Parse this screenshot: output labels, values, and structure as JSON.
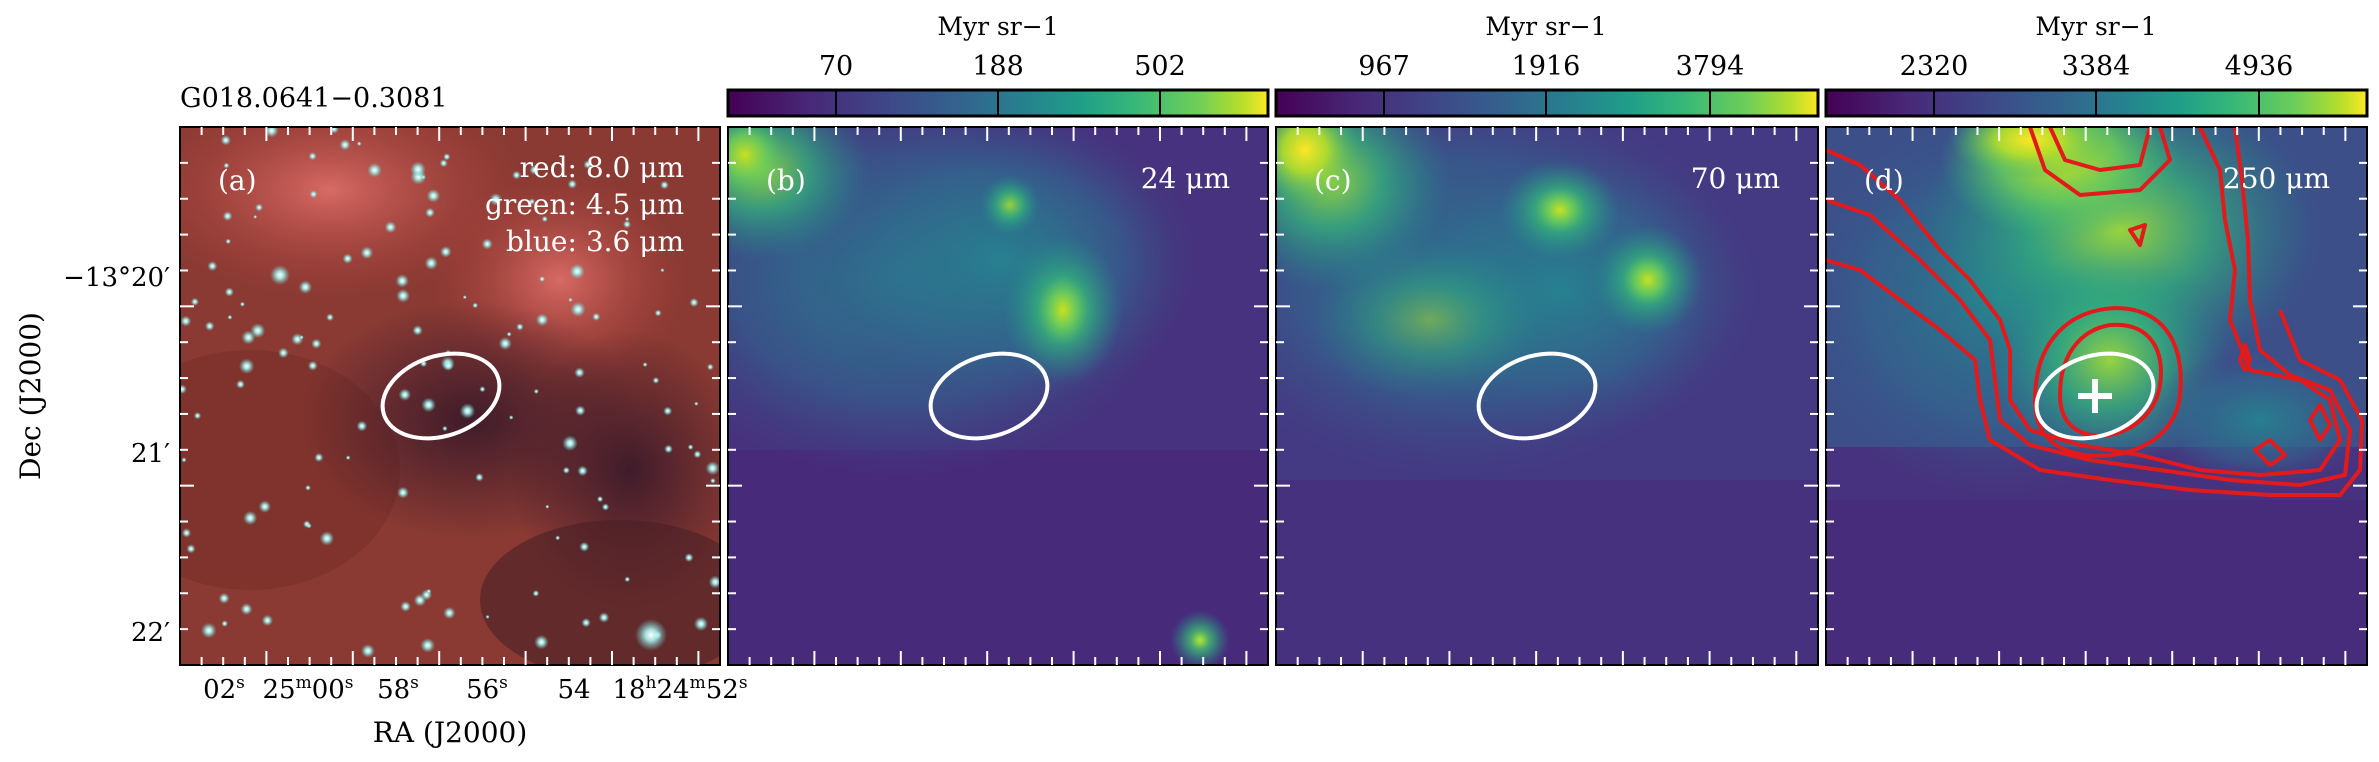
{
  "source_name": "G018.0641−0.3081",
  "x_axis_label": "RA (J2000)",
  "y_axis_label": "Dec (J2000)",
  "ra_ticks": [
    {
      "label": "02",
      "sup": "s"
    },
    {
      "label": "25",
      "sup": "m",
      "label2": "00",
      "sup2": "s"
    },
    {
      "label": "58",
      "sup": "s"
    },
    {
      "label": "56",
      "sup": "s"
    },
    {
      "label": "54",
      "sup": ""
    },
    {
      "label": "18",
      "sup": "h",
      "label2": "24",
      "sup2": "m",
      "label3": "52",
      "sup3": "s"
    }
  ],
  "dec_ticks": [
    "−13°20′",
    "21′",
    "22′"
  ],
  "panels": [
    {
      "id": "a",
      "letter": "(a)",
      "bands": [
        "red: 8.0 μm",
        "green: 4.5 μm",
        "blue: 3.6 μm"
      ]
    },
    {
      "id": "b",
      "letter": "(b)",
      "wavelength": "24 μm",
      "colorbar": {
        "unit": "Myr sr−1",
        "ticks": [
          "70",
          "188",
          "502"
        ]
      }
    },
    {
      "id": "c",
      "letter": "(c)",
      "wavelength": "70 μm",
      "colorbar": {
        "unit": "Myr sr−1",
        "ticks": [
          "967",
          "1916",
          "3794"
        ]
      }
    },
    {
      "id": "d",
      "letter": "(d)",
      "wavelength": "250 μm",
      "colorbar": {
        "unit": "Myr sr−1",
        "ticks": [
          "2320",
          "3384",
          "4936"
        ]
      }
    }
  ],
  "colors": {
    "viridis_low": "#440154",
    "viridis_mid": "#21918c",
    "viridis_high": "#fde725",
    "contour": "#e31a1c",
    "ellipse": "#ffffff"
  }
}
